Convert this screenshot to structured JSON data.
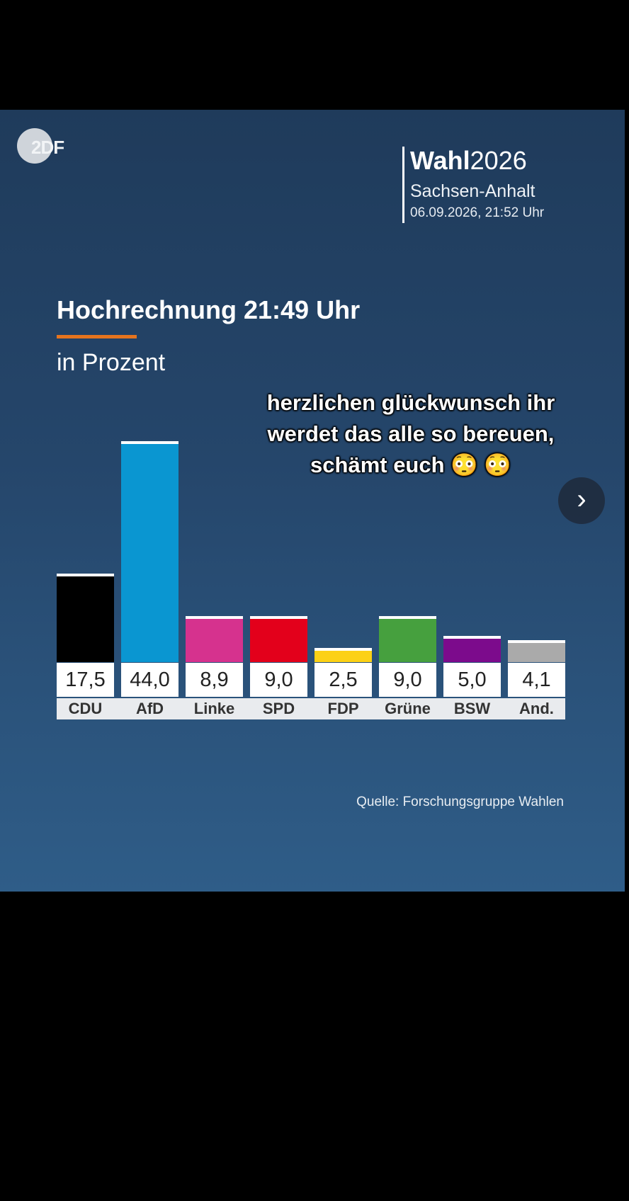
{
  "logo": {
    "text": "2DF"
  },
  "header": {
    "title_bold": "Wahl",
    "title_year": "2026",
    "region": "Sachsen-Anhalt",
    "datetime": "06.09.2026, 21:52 Uhr"
  },
  "chart_title": "Hochrechnung 21:49 Uhr",
  "chart_subtitle": "in Prozent",
  "overlay_caption": "herzlichen glückwunsch ihr werdet das alle so bereuen, schämt euch 😳 😳",
  "source": "Quelle: Forschungsgruppe Wahlen",
  "colors": {
    "accent": "#e5741e",
    "background_top": "#1f3b5b",
    "background_bottom": "#2f5d88"
  },
  "chart_data": {
    "type": "bar",
    "title": "Hochrechnung 21:49 Uhr",
    "subtitle": "in Prozent",
    "categories": [
      "CDU",
      "AfD",
      "Linke",
      "SPD",
      "FDP",
      "Grüne",
      "BSW",
      "And."
    ],
    "values": [
      17.5,
      44.0,
      8.9,
      9.0,
      2.5,
      9.0,
      5.0,
      4.1
    ],
    "value_labels": [
      "17,5",
      "44,0",
      "8,9",
      "9,0",
      "2,5",
      "9,0",
      "5,0",
      "4,1"
    ],
    "colors": [
      "#000000",
      "#0a96d1",
      "#d6328e",
      "#e3001b",
      "#fcd116",
      "#46a03e",
      "#7c0b8c",
      "#aaaaaa"
    ],
    "ylim": [
      0,
      44.0
    ],
    "grid": false
  }
}
